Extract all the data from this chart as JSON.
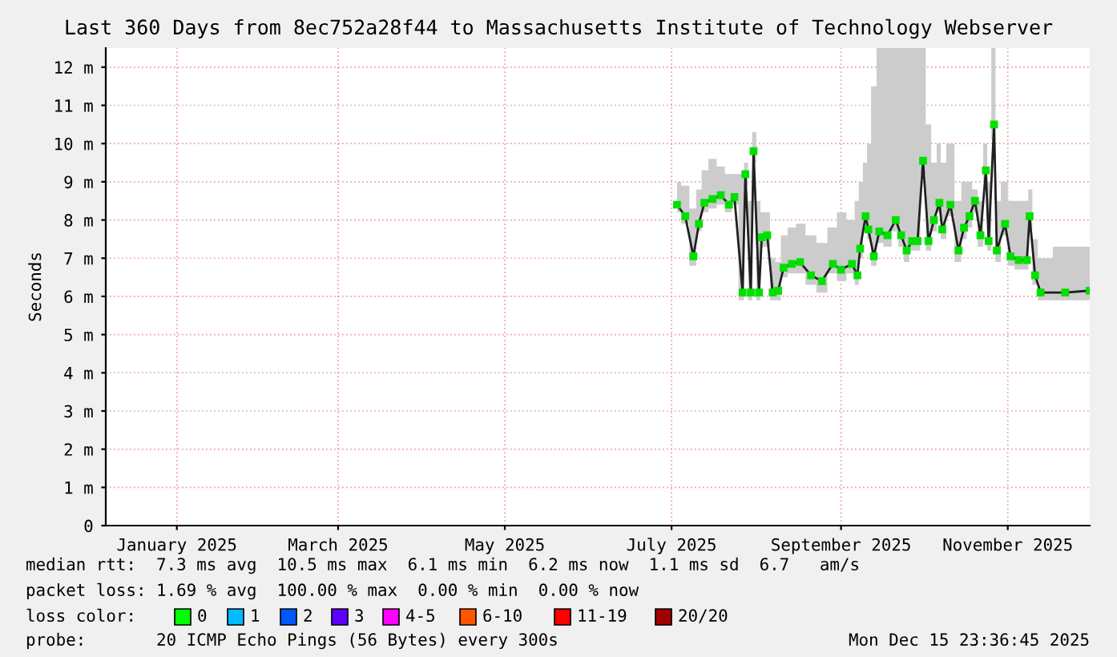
{
  "chart_data": {
    "type": "line",
    "title": "Last 360 Days from 8ec752a28f44 to Massachusetts Institute of Technology Webserver",
    "ylabel": "Seconds",
    "x": [
      "2025-07-17",
      "2025-07-20",
      "2025-07-23",
      "2025-07-25",
      "2025-07-27",
      "2025-07-30",
      "2025-08-02",
      "2025-08-05",
      "2025-08-07",
      "2025-08-10",
      "2025-08-11",
      "2025-08-13",
      "2025-08-14",
      "2025-08-16",
      "2025-08-17",
      "2025-08-19",
      "2025-08-21",
      "2025-08-23",
      "2025-08-25",
      "2025-08-28",
      "2025-08-31",
      "2025-09-04",
      "2025-09-08",
      "2025-09-12",
      "2025-09-15",
      "2025-09-19",
      "2025-09-21",
      "2025-09-22",
      "2025-09-24",
      "2025-09-25",
      "2025-09-27",
      "2025-09-29",
      "2025-10-02",
      "2025-10-05",
      "2025-10-07",
      "2025-10-09",
      "2025-10-11",
      "2025-10-13",
      "2025-10-15",
      "2025-10-17",
      "2025-10-19",
      "2025-10-21",
      "2025-10-22",
      "2025-10-25",
      "2025-10-28",
      "2025-10-30",
      "2025-11-01",
      "2025-11-03",
      "2025-11-05",
      "2025-11-07",
      "2025-11-08",
      "2025-11-10",
      "2025-11-11",
      "2025-11-14",
      "2025-11-16",
      "2025-11-19",
      "2025-11-22",
      "2025-11-23",
      "2025-11-25",
      "2025-11-27",
      "2025-12-06",
      "2025-12-15"
    ],
    "series": [
      {
        "color": "#00e000",
        "marker": "square",
        "values": [
          8.4,
          8.1,
          7.05,
          7.9,
          8.45,
          8.55,
          8.65,
          8.4,
          8.6,
          6.1,
          9.2,
          6.1,
          9.8,
          6.1,
          7.55,
          7.6,
          6.1,
          6.15,
          6.75,
          6.85,
          6.9,
          6.55,
          6.4,
          6.85,
          6.7,
          6.85,
          6.55,
          7.25,
          8.1,
          7.75,
          7.05,
          7.7,
          7.6,
          8.0,
          7.6,
          7.2,
          7.45,
          7.45,
          9.55,
          7.45,
          8.0,
          8.45,
          7.75,
          8.4,
          7.2,
          7.8,
          8.1,
          8.5,
          7.6,
          9.3,
          7.45,
          10.5,
          7.2,
          7.9,
          7.05,
          6.95,
          6.95,
          8.1,
          6.55,
          6.1,
          6.1,
          6.15
        ],
        "upper": [
          9.0,
          8.9,
          8.3,
          8.8,
          9.3,
          9.6,
          9.4,
          9.2,
          9.2,
          9.2,
          9.5,
          8.5,
          10.3,
          8.5,
          8.2,
          8.2,
          7.0,
          6.9,
          7.6,
          7.8,
          7.9,
          7.6,
          7.4,
          7.8,
          8.2,
          8.0,
          8.5,
          9.0,
          9.5,
          10.0,
          11.5,
          12.5,
          12.5,
          12.5,
          12.5,
          12.5,
          12.5,
          12.5,
          12.5,
          10.5,
          9.5,
          10.0,
          9.5,
          10.0,
          8.5,
          9.0,
          9.0,
          8.8,
          8.5,
          10.0,
          9.0,
          12.5,
          8.5,
          9.0,
          8.5,
          8.5,
          8.5,
          8.8,
          7.5,
          7.0,
          7.3,
          7.3
        ],
        "lower": [
          8.2,
          7.9,
          6.8,
          7.7,
          8.2,
          8.3,
          8.4,
          8.2,
          8.4,
          5.9,
          8.9,
          5.9,
          9.5,
          5.9,
          7.3,
          7.3,
          5.9,
          5.9,
          6.5,
          6.6,
          6.6,
          6.3,
          6.1,
          6.6,
          6.4,
          6.6,
          6.3,
          7.0,
          7.8,
          7.5,
          6.8,
          7.4,
          7.3,
          7.7,
          7.3,
          6.9,
          7.2,
          7.2,
          9.2,
          7.2,
          7.7,
          8.2,
          7.5,
          8.1,
          6.9,
          7.5,
          7.8,
          8.2,
          7.3,
          9.0,
          7.2,
          10.1,
          6.9,
          7.6,
          6.8,
          6.7,
          6.7,
          7.8,
          6.3,
          5.9,
          5.9,
          5.9
        ]
      }
    ],
    "xlim": [
      "2024-12-20",
      "2025-12-15"
    ],
    "xticks": [
      {
        "value": "2025-01-15",
        "label": "January 2025"
      },
      {
        "value": "2025-03-15",
        "label": "March 2025"
      },
      {
        "value": "2025-05-15",
        "label": "May 2025"
      },
      {
        "value": "2025-07-15",
        "label": "July 2025"
      },
      {
        "value": "2025-09-15",
        "label": "September 2025"
      },
      {
        "value": "2025-11-15",
        "label": "November 2025"
      }
    ],
    "ylim": [
      0,
      12.5
    ],
    "yticks": [
      {
        "value": 0,
        "label": "0"
      },
      {
        "value": 1,
        "label": "1 m"
      },
      {
        "value": 2,
        "label": "2 m"
      },
      {
        "value": 3,
        "label": "3 m"
      },
      {
        "value": 4,
        "label": "4 m"
      },
      {
        "value": 5,
        "label": "5 m"
      },
      {
        "value": 6,
        "label": "6 m"
      },
      {
        "value": 7,
        "label": "7 m"
      },
      {
        "value": 8,
        "label": "8 m"
      },
      {
        "value": 9,
        "label": "9 m"
      },
      {
        "value": 10,
        "label": "10 m"
      },
      {
        "value": 11,
        "label": "11 m"
      },
      {
        "value": 12,
        "label": "12 m"
      }
    ],
    "grid": true,
    "annotations": [
      "median rtt:  7.3 ms avg  10.5 ms max  6.1 ms min  6.2 ms now  1.1 ms sd  6.7   am/s",
      "packet loss: 1.69 % avg  100.00 % max  0.00 % min  0.00 % now",
      "loss color:",
      "0",
      "1",
      "2",
      "3",
      "4-5",
      "6-10",
      "11-19",
      "20/20",
      "probe:       20 ICMP Echo Pings (56 Bytes) every 300s",
      "Mon Dec 15 23:36:45 2025"
    ]
  }
}
